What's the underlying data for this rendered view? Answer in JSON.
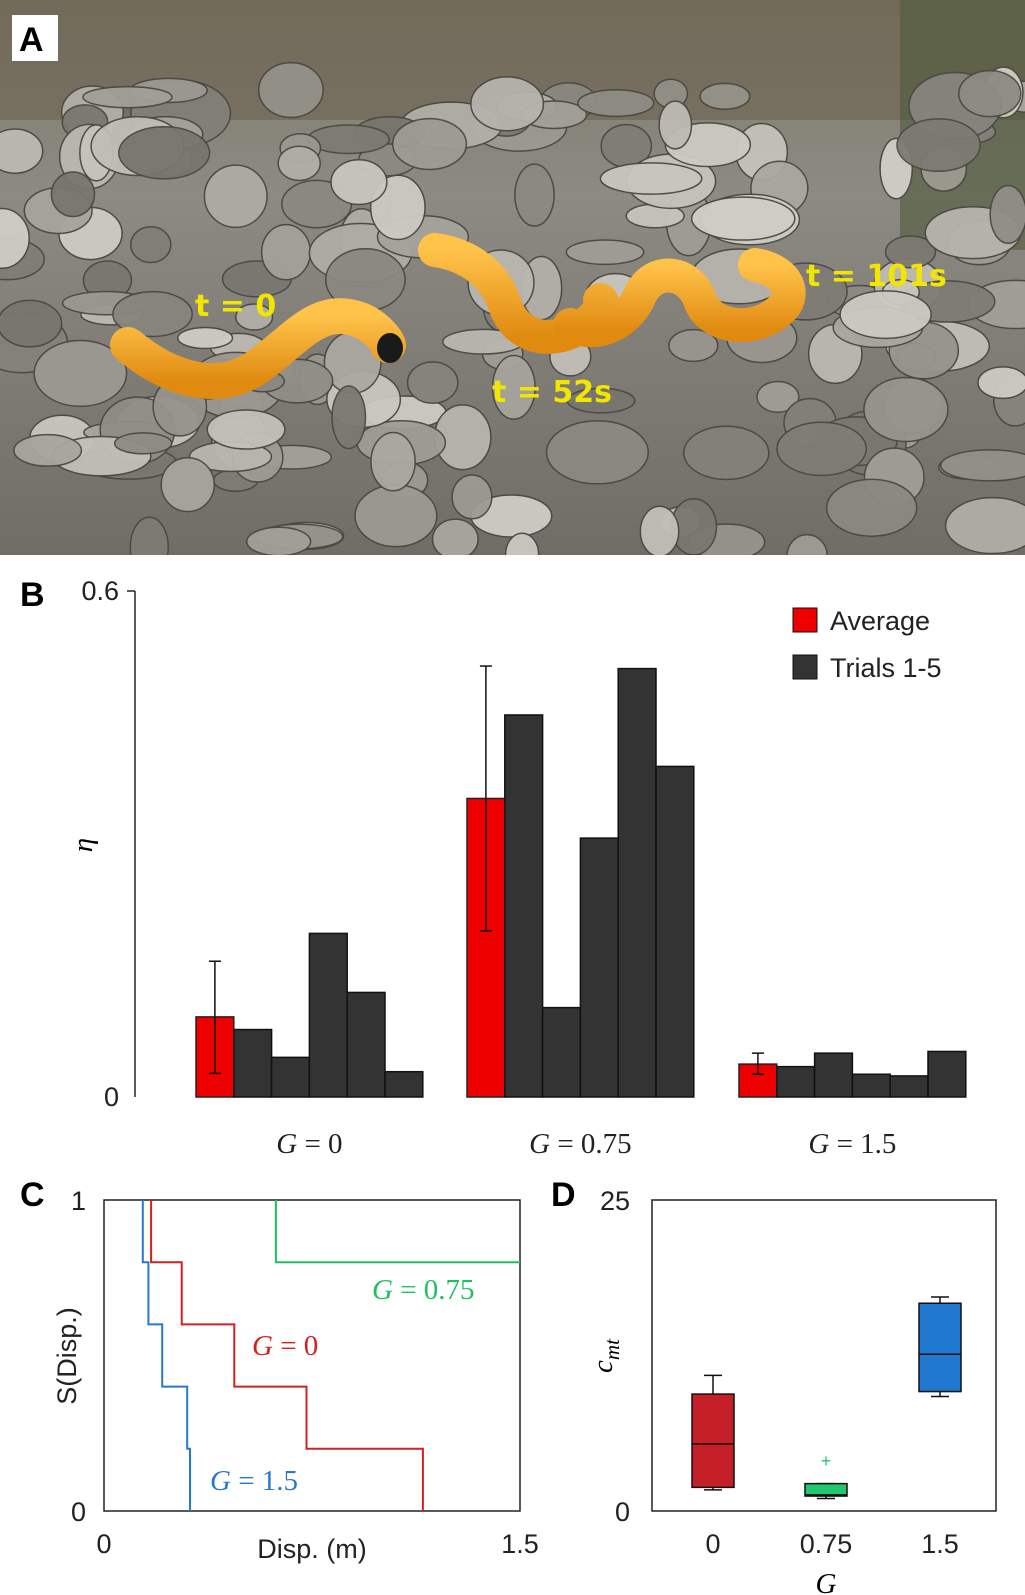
{
  "panels": {
    "A": {
      "letter": "A",
      "labels": [
        "t = 0",
        "t = 52s",
        "t = 101s"
      ],
      "colors": {
        "robot": "#f0a21f",
        "label": "#f2e600"
      }
    },
    "B": {
      "letter": "B",
      "ylabel": "η",
      "yticks": [
        "0.6",
        "0"
      ],
      "legend": [
        {
          "label": "Average",
          "color": "#ee0000"
        },
        {
          "label": "Trials 1-5",
          "color": "#333333"
        }
      ]
    },
    "C": {
      "letter": "C",
      "ylabel": "S(Disp.)",
      "xlabel": "Disp. (m)",
      "yticks": [
        "1",
        "0"
      ],
      "xticks": [
        "0",
        "1.5"
      ]
    },
    "D": {
      "letter": "D",
      "ylabel": "c",
      "ylabel_sub": "mt",
      "xlabel": "G",
      "yticks": [
        "25",
        "0"
      ],
      "xticks": [
        "0",
        "0.75",
        "1.5"
      ]
    }
  },
  "chart_data": [
    {
      "panel": "B",
      "type": "bar",
      "ylabel": "η",
      "ylim": [
        0,
        0.6
      ],
      "groups": [
        {
          "G": "0",
          "average": 0.095,
          "err": [
            0.028,
            0.161
          ],
          "trials": [
            0.08,
            0.047,
            0.194,
            0.124,
            0.03
          ]
        },
        {
          "G": "0.75",
          "average": 0.354,
          "err": [
            0.197,
            0.511
          ],
          "trials": [
            0.453,
            0.106,
            0.307,
            0.508,
            0.392
          ]
        },
        {
          "G": "1.5",
          "average": 0.039,
          "err": [
            0.027,
            0.052
          ],
          "trials": [
            0.036,
            0.052,
            0.027,
            0.025,
            0.054
          ]
        }
      ],
      "legend": [
        "Average",
        "Trials 1-5"
      ],
      "legend_position": "top-right",
      "colors": {
        "average": "#ee0000",
        "trials": "#333333"
      }
    },
    {
      "panel": "C",
      "type": "line",
      "xlabel": "Disp. (m)",
      "ylabel": "S(Disp.)",
      "xlim": [
        0,
        1.5
      ],
      "ylim": [
        0,
        1
      ],
      "series": [
        {
          "name": "G = 0",
          "color": "#d42020",
          "x": [
            0.17,
            0.17,
            0.28,
            0.28,
            0.47,
            0.47,
            0.73,
            0.73,
            1.15,
            1.15
          ],
          "y": [
            1,
            0.8,
            0.8,
            0.6,
            0.6,
            0.4,
            0.4,
            0.2,
            0.2,
            0
          ]
        },
        {
          "name": "G = 0.75",
          "color": "#20c060",
          "x": [
            0.62,
            0.62,
            1.5
          ],
          "y": [
            1,
            0.8,
            0.8
          ]
        },
        {
          "name": "G = 1.5",
          "color": "#2878d0",
          "x": [
            0.14,
            0.14,
            0.16,
            0.16,
            0.21,
            0.21,
            0.3,
            0.3,
            0.31,
            0.31
          ],
          "y": [
            1,
            0.8,
            0.8,
            0.6,
            0.6,
            0.4,
            0.4,
            0.2,
            0.2,
            0
          ]
        }
      ],
      "annotations": [
        {
          "parts": [
            "G",
            "=",
            "0.75"
          ],
          "color": "#20c060"
        },
        {
          "parts": [
            "G",
            "=",
            "0"
          ],
          "color": "#d42020"
        },
        {
          "parts": [
            "G",
            "=",
            "1.5"
          ],
          "color": "#2878d0"
        }
      ]
    },
    {
      "panel": "D",
      "type": "box",
      "xlabel": "G",
      "ylabel": "c_mt",
      "ylim": [
        0,
        25
      ],
      "categories": [
        "0",
        "0.75",
        "1.5"
      ],
      "boxes": [
        {
          "G": "0",
          "min": 1.7,
          "q1": 1.9,
          "median": 5.4,
          "q3": 9.4,
          "max": 10.9,
          "color": "#c52027"
        },
        {
          "G": "0.75",
          "min": 1.0,
          "q1": 1.2,
          "median": 1.3,
          "q3": 2.2,
          "max": 2.2,
          "outliers": [
            4.0
          ],
          "color": "#22c870"
        },
        {
          "G": "1.5",
          "min": 9.2,
          "q1": 9.6,
          "median": 12.6,
          "q3": 16.7,
          "max": 17.2,
          "color": "#2078d0"
        }
      ]
    }
  ]
}
